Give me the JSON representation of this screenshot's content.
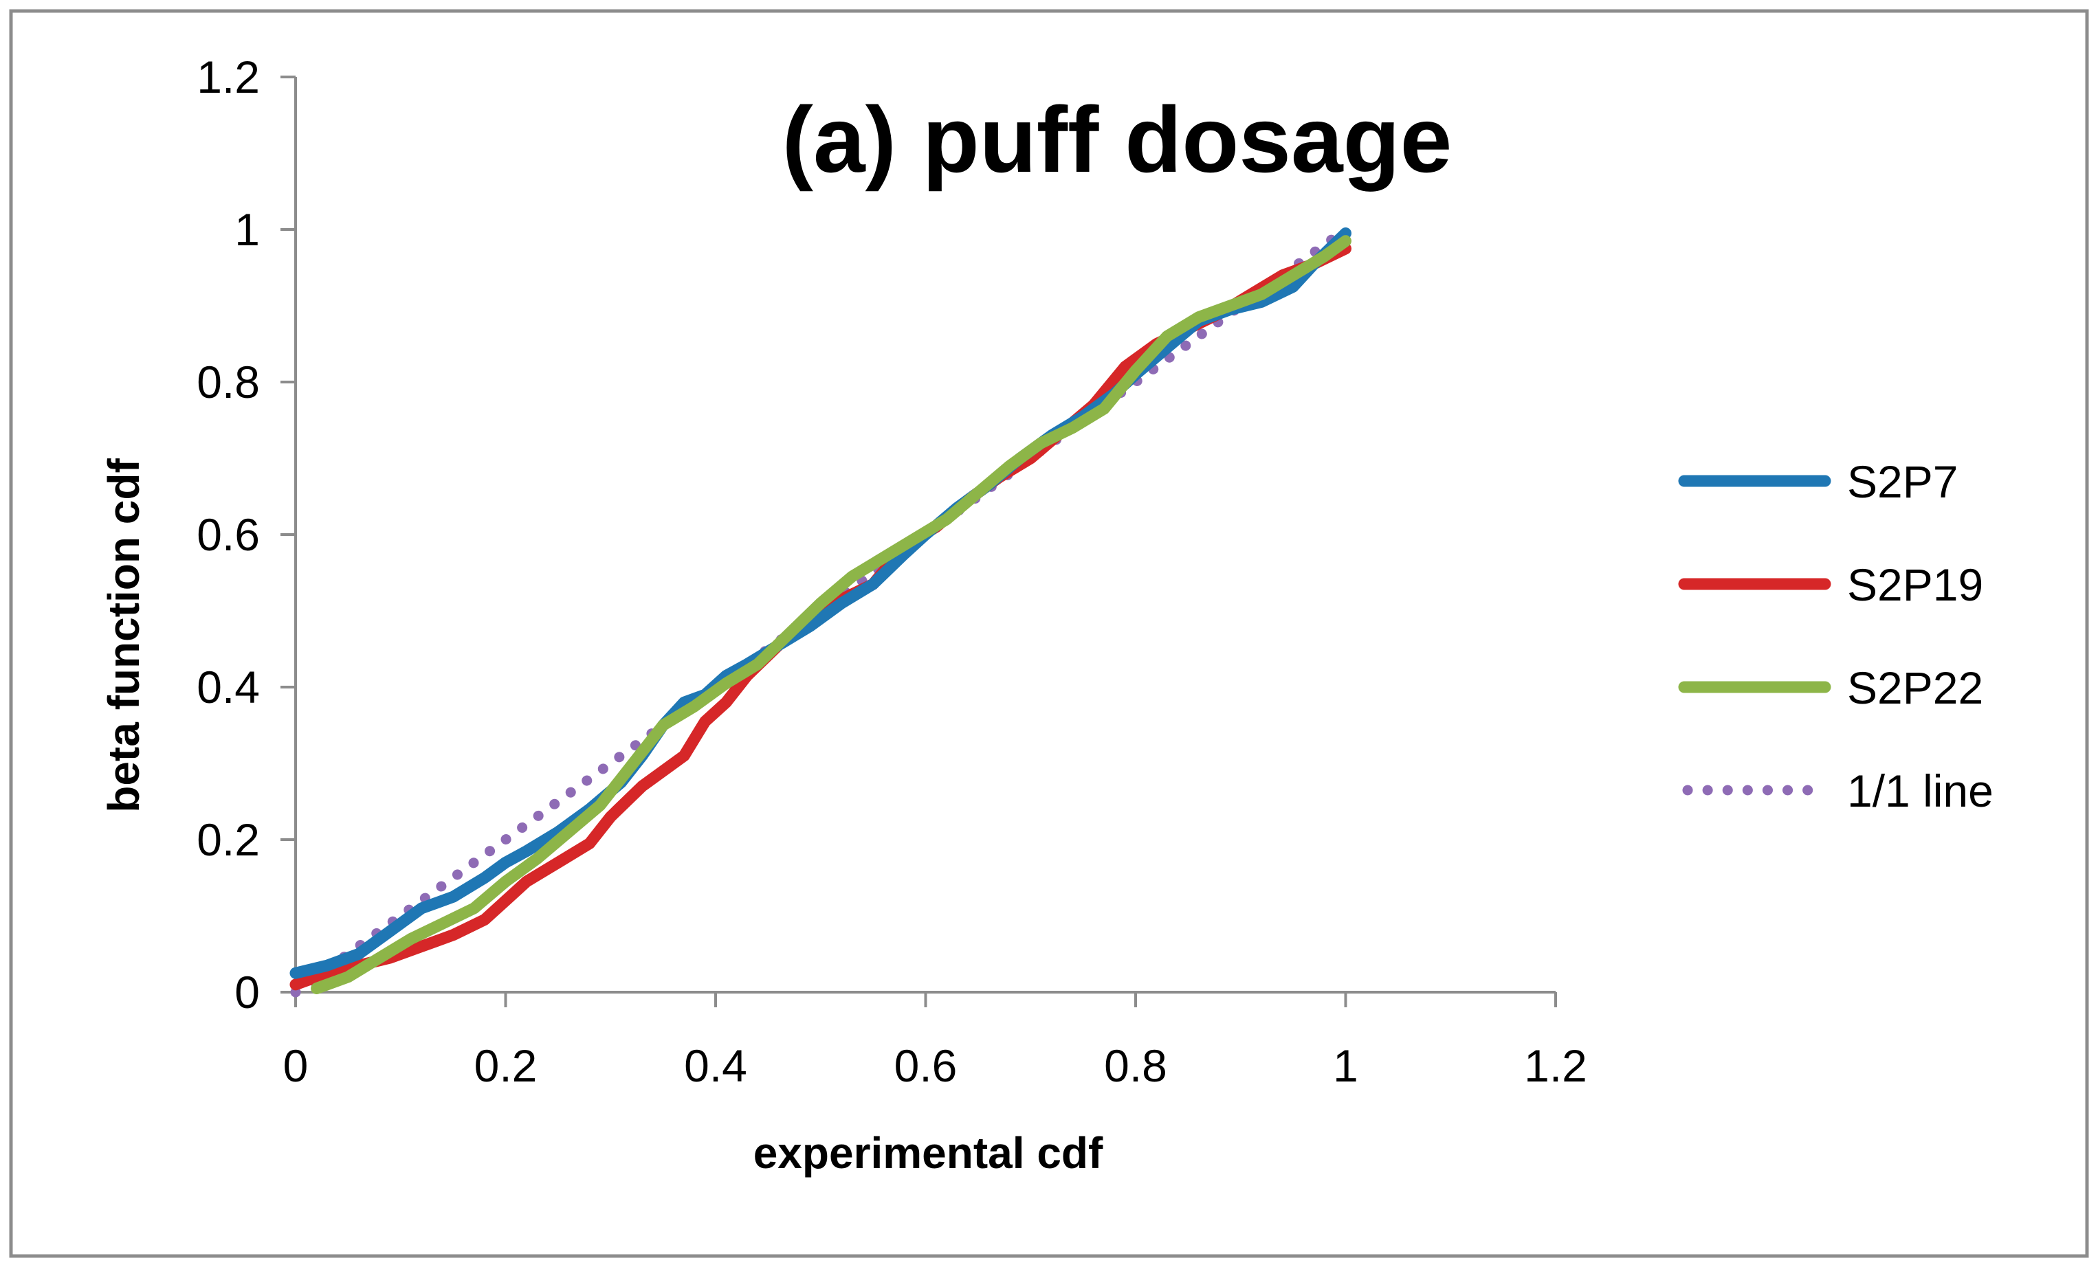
{
  "chart_data": {
    "type": "line",
    "title": "(a) puff dosage",
    "xlabel": "experimental cdf",
    "ylabel": "beta function cdf",
    "xlim": [
      0,
      1.2
    ],
    "ylim": [
      0,
      1.2
    ],
    "x_ticks": [
      "0",
      "0.2",
      "0.4",
      "0.6",
      "0.8",
      "1",
      "1.2"
    ],
    "y_ticks": [
      "0",
      "0.2",
      "0.4",
      "0.6",
      "0.8",
      "1",
      "1.2"
    ],
    "grid": false,
    "legend_position": "right",
    "series": [
      {
        "name": "S2P7",
        "color": "#1f77b4",
        "style": "solid",
        "points": [
          [
            0.0,
            0.025
          ],
          [
            0.03,
            0.035
          ],
          [
            0.06,
            0.05
          ],
          [
            0.09,
            0.08
          ],
          [
            0.12,
            0.11
          ],
          [
            0.15,
            0.125
          ],
          [
            0.18,
            0.15
          ],
          [
            0.2,
            0.17
          ],
          [
            0.22,
            0.185
          ],
          [
            0.25,
            0.21
          ],
          [
            0.28,
            0.24
          ],
          [
            0.31,
            0.275
          ],
          [
            0.33,
            0.31
          ],
          [
            0.35,
            0.35
          ],
          [
            0.37,
            0.38
          ],
          [
            0.39,
            0.39
          ],
          [
            0.41,
            0.415
          ],
          [
            0.43,
            0.43
          ],
          [
            0.46,
            0.455
          ],
          [
            0.49,
            0.48
          ],
          [
            0.52,
            0.51
          ],
          [
            0.55,
            0.535
          ],
          [
            0.58,
            0.575
          ],
          [
            0.6,
            0.6
          ],
          [
            0.63,
            0.635
          ],
          [
            0.66,
            0.665
          ],
          [
            0.69,
            0.7
          ],
          [
            0.72,
            0.73
          ],
          [
            0.75,
            0.755
          ],
          [
            0.78,
            0.785
          ],
          [
            0.8,
            0.81
          ],
          [
            0.83,
            0.845
          ],
          [
            0.86,
            0.88
          ],
          [
            0.89,
            0.895
          ],
          [
            0.92,
            0.905
          ],
          [
            0.95,
            0.925
          ],
          [
            0.97,
            0.955
          ],
          [
            1.0,
            0.995
          ]
        ]
      },
      {
        "name": "S2P19",
        "color": "#d62728",
        "style": "solid",
        "points": [
          [
            0.0,
            0.01
          ],
          [
            0.03,
            0.025
          ],
          [
            0.06,
            0.035
          ],
          [
            0.09,
            0.045
          ],
          [
            0.12,
            0.06
          ],
          [
            0.15,
            0.075
          ],
          [
            0.18,
            0.095
          ],
          [
            0.2,
            0.12
          ],
          [
            0.22,
            0.145
          ],
          [
            0.25,
            0.17
          ],
          [
            0.28,
            0.195
          ],
          [
            0.3,
            0.23
          ],
          [
            0.33,
            0.27
          ],
          [
            0.35,
            0.29
          ],
          [
            0.37,
            0.31
          ],
          [
            0.39,
            0.355
          ],
          [
            0.41,
            0.38
          ],
          [
            0.43,
            0.415
          ],
          [
            0.46,
            0.455
          ],
          [
            0.49,
            0.49
          ],
          [
            0.52,
            0.515
          ],
          [
            0.55,
            0.535
          ],
          [
            0.58,
            0.585
          ],
          [
            0.61,
            0.61
          ],
          [
            0.64,
            0.645
          ],
          [
            0.67,
            0.675
          ],
          [
            0.7,
            0.7
          ],
          [
            0.73,
            0.735
          ],
          [
            0.76,
            0.77
          ],
          [
            0.79,
            0.82
          ],
          [
            0.82,
            0.85
          ],
          [
            0.85,
            0.87
          ],
          [
            0.88,
            0.89
          ],
          [
            0.91,
            0.915
          ],
          [
            0.94,
            0.94
          ],
          [
            0.97,
            0.955
          ],
          [
            1.0,
            0.975
          ]
        ]
      },
      {
        "name": "S2P22",
        "color": "#8db548",
        "style": "solid",
        "points": [
          [
            0.02,
            0.005
          ],
          [
            0.05,
            0.02
          ],
          [
            0.08,
            0.045
          ],
          [
            0.11,
            0.07
          ],
          [
            0.14,
            0.09
          ],
          [
            0.17,
            0.11
          ],
          [
            0.2,
            0.145
          ],
          [
            0.23,
            0.175
          ],
          [
            0.26,
            0.21
          ],
          [
            0.29,
            0.245
          ],
          [
            0.31,
            0.28
          ],
          [
            0.33,
            0.315
          ],
          [
            0.35,
            0.35
          ],
          [
            0.38,
            0.375
          ],
          [
            0.41,
            0.405
          ],
          [
            0.44,
            0.43
          ],
          [
            0.47,
            0.47
          ],
          [
            0.5,
            0.51
          ],
          [
            0.53,
            0.545
          ],
          [
            0.56,
            0.57
          ],
          [
            0.59,
            0.595
          ],
          [
            0.62,
            0.62
          ],
          [
            0.65,
            0.655
          ],
          [
            0.68,
            0.69
          ],
          [
            0.71,
            0.72
          ],
          [
            0.74,
            0.74
          ],
          [
            0.77,
            0.765
          ],
          [
            0.8,
            0.815
          ],
          [
            0.83,
            0.86
          ],
          [
            0.86,
            0.885
          ],
          [
            0.89,
            0.9
          ],
          [
            0.92,
            0.915
          ],
          [
            0.95,
            0.94
          ],
          [
            0.98,
            0.965
          ],
          [
            1.0,
            0.985
          ]
        ]
      },
      {
        "name": "1/1 line",
        "color": "#8e6bb5",
        "style": "dotted",
        "points": [
          [
            0.0,
            0.0
          ],
          [
            1.0,
            1.0
          ]
        ]
      }
    ]
  }
}
